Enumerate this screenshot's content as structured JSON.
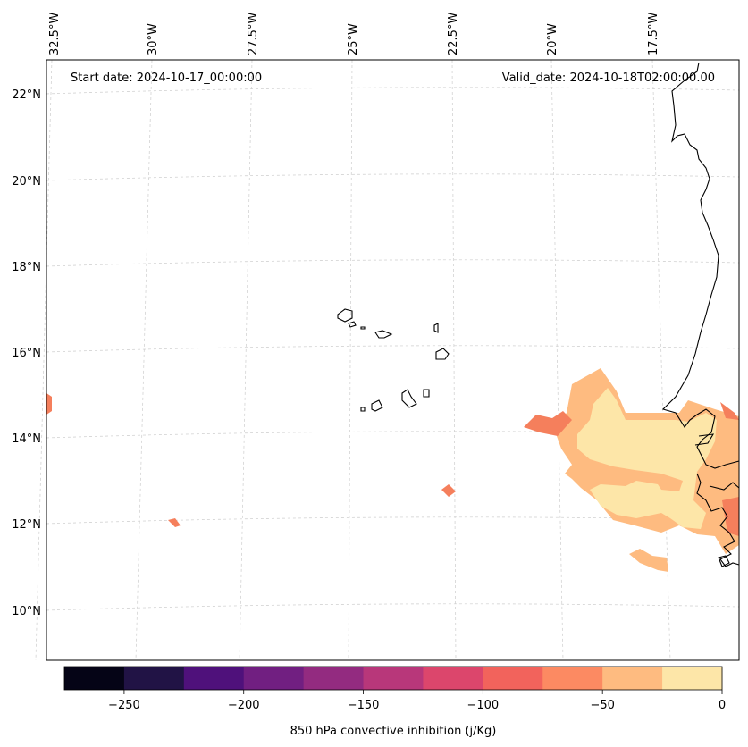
{
  "annotations": {
    "start_date": "Start date: 2024-10-17_00:00:00",
    "valid_date": "Valid_date: 2024-10-18T02:00:00.00"
  },
  "longitude_labels": [
    "32.5°W",
    "30°W",
    "27.5°W",
    "25°W",
    "22.5°W",
    "20°W",
    "17.5°W"
  ],
  "latitude_labels": [
    "22°N",
    "20°N",
    "18°N",
    "16°N",
    "14°N",
    "12°N",
    "10°N"
  ],
  "colorbar": {
    "label": "850 hPa convective inhibition (j/Kg)",
    "tick_labels": [
      "−250",
      "−200",
      "−150",
      "−100",
      "−50",
      "0"
    ],
    "colors": [
      "#050416",
      "#211345",
      "#4f117b",
      "#711f81",
      "#932b80",
      "#b8377a",
      "#dc466c",
      "#f2635c",
      "#fc8a62",
      "#febb80",
      "#fde6a8"
    ]
  }
}
